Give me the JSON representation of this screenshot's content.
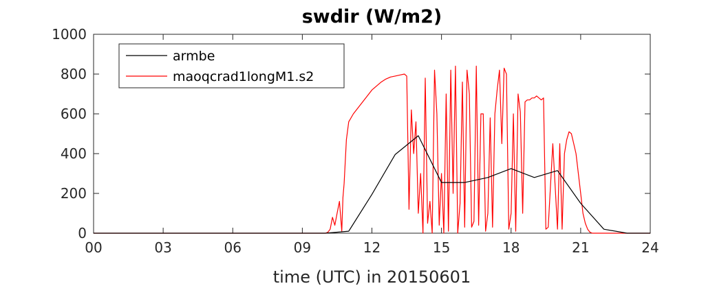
{
  "chart_data": {
    "type": "line",
    "title": "swdir  (W/m2)",
    "xlabel": "time (UTC) in 20150601",
    "ylabel": "",
    "xlim": [
      0,
      24
    ],
    "ylim": [
      0,
      1000
    ],
    "xticks": [
      0,
      3,
      6,
      9,
      12,
      15,
      18,
      21,
      24
    ],
    "xtick_labels": [
      "00",
      "03",
      "06",
      "09",
      "12",
      "15",
      "18",
      "21",
      "24"
    ],
    "yticks": [
      0,
      200,
      400,
      600,
      800,
      1000
    ],
    "ytick_labels": [
      "0",
      "200",
      "400",
      "600",
      "800",
      "1000"
    ],
    "grid": false,
    "legend": "top-left",
    "series": [
      {
        "name": "armbe",
        "color": "#000000",
        "x": [
          0,
          1,
          2,
          3,
          4,
          5,
          6,
          7,
          8,
          9,
          10,
          11,
          12,
          13,
          14,
          15,
          16,
          17,
          18,
          19,
          20,
          21,
          22,
          23,
          24
        ],
        "y": [
          0,
          0,
          0,
          0,
          0,
          0,
          0,
          0,
          0,
          0,
          0,
          10,
          195,
          395,
          490,
          255,
          255,
          280,
          325,
          280,
          315,
          150,
          20,
          0,
          0
        ]
      },
      {
        "name": "maoqcrad1longM1.s2",
        "color": "#ff0000",
        "x": [
          0,
          9.5,
          10.0,
          10.1,
          10.2,
          10.3,
          10.4,
          10.5,
          10.6,
          10.7,
          10.75,
          10.8,
          10.9,
          11.0,
          11.2,
          11.4,
          11.6,
          11.8,
          12.0,
          12.2,
          12.4,
          12.6,
          12.8,
          13.0,
          13.2,
          13.4,
          13.5,
          13.6,
          13.7,
          13.8,
          13.9,
          14.0,
          14.1,
          14.2,
          14.3,
          14.4,
          14.5,
          14.6,
          14.7,
          14.8,
          14.9,
          15.0,
          15.1,
          15.2,
          15.3,
          15.4,
          15.5,
          15.6,
          15.7,
          15.8,
          15.9,
          16.0,
          16.1,
          16.2,
          16.3,
          16.4,
          16.5,
          16.6,
          16.7,
          16.8,
          16.9,
          17.0,
          17.1,
          17.2,
          17.3,
          17.4,
          17.5,
          17.6,
          17.7,
          17.8,
          17.9,
          18.0,
          18.1,
          18.2,
          18.3,
          18.4,
          18.5,
          18.6,
          18.7,
          18.8,
          18.9,
          19.0,
          19.1,
          19.2,
          19.3,
          19.4,
          19.5,
          19.6,
          19.8,
          20.0,
          20.1,
          20.2,
          20.3,
          20.4,
          20.5,
          20.6,
          20.7,
          20.8,
          20.9,
          21.0,
          21.1,
          21.2,
          21.3,
          21.4,
          21.5,
          21.6,
          21.7,
          22.0,
          24
        ],
        "y": [
          0,
          0,
          0,
          5,
          20,
          80,
          40,
          100,
          160,
          10,
          180,
          250,
          470,
          560,
          600,
          630,
          660,
          690,
          720,
          740,
          760,
          775,
          785,
          790,
          795,
          800,
          790,
          120,
          620,
          400,
          560,
          100,
          300,
          0,
          780,
          50,
          160,
          0,
          820,
          600,
          40,
          300,
          0,
          700,
          10,
          820,
          200,
          840,
          0,
          150,
          760,
          30,
          820,
          700,
          30,
          60,
          840,
          40,
          600,
          600,
          10,
          100,
          580,
          30,
          600,
          720,
          820,
          450,
          830,
          800,
          20,
          100,
          600,
          10,
          700,
          610,
          100,
          660,
          670,
          670,
          680,
          680,
          690,
          680,
          670,
          680,
          20,
          30,
          450,
          20,
          450,
          20,
          400,
          470,
          510,
          500,
          450,
          400,
          300,
          200,
          100,
          50,
          20,
          5,
          0,
          0,
          0,
          0,
          0
        ]
      }
    ]
  }
}
